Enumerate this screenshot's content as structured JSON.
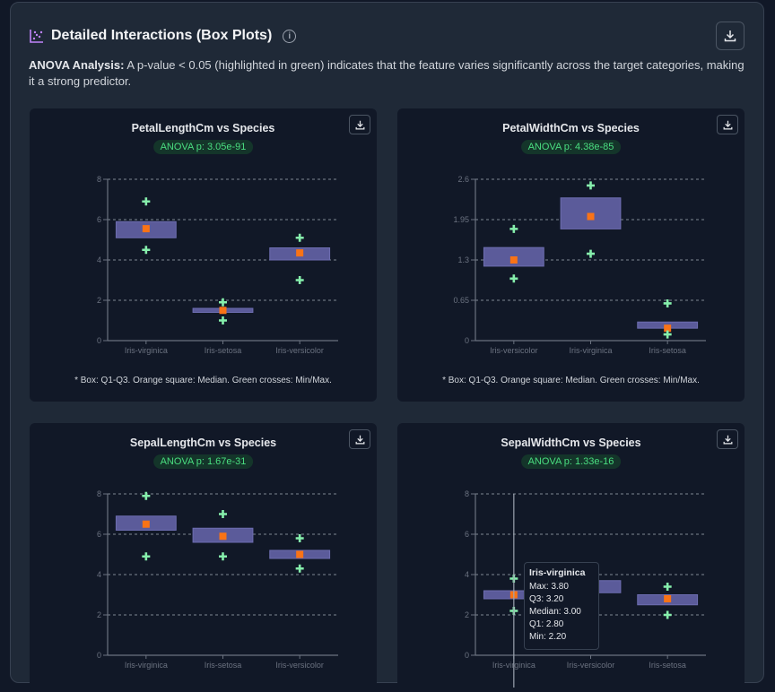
{
  "header": {
    "title": "Detailed Interactions (Box Plots)",
    "icon": "scatter-chart-icon",
    "description_label": "ANOVA Analysis:",
    "description_text": " A p-value < 0.05 (highlighted in green) indicates that the feature varies significantly across the target categories, making it a strong predictor."
  },
  "colors": {
    "box": "#5b5b9a",
    "median": "#f97316",
    "minmax": "#86efac",
    "badge_text": "#4ade80",
    "grid": "#9ca3af"
  },
  "note": "* Box: Q1-Q3. Orange square: Median. Green crosses: Min/Max.",
  "tooltip": {
    "name": "Iris-virginica",
    "max": "Max: 3.80",
    "q3": "Q3: 3.20",
    "median": "Median: 3.00",
    "q1": "Q1: 2.80",
    "min": "Min: 2.20"
  },
  "chart_data": [
    {
      "type": "box",
      "title": "PetalLengthCm vs Species",
      "anova": "ANOVA p: 3.05e-91",
      "yticks": [
        "0",
        "2",
        "4",
        "6",
        "8"
      ],
      "ylim": [
        0,
        8
      ],
      "categories": [
        "Iris-virginica",
        "Iris-setosa",
        "Iris-versicolor"
      ],
      "boxes": [
        {
          "min": 4.5,
          "q1": 5.1,
          "median": 5.55,
          "q3": 5.9,
          "max": 6.9
        },
        {
          "min": 1.0,
          "q1": 1.4,
          "median": 1.5,
          "q3": 1.6,
          "max": 1.9
        },
        {
          "min": 3.0,
          "q1": 4.0,
          "median": 4.35,
          "q3": 4.6,
          "max": 5.1
        }
      ]
    },
    {
      "type": "box",
      "title": "PetalWidthCm vs Species",
      "anova": "ANOVA p: 4.38e-85",
      "yticks": [
        "0",
        "0.65",
        "1.3",
        "1.95",
        "2.6"
      ],
      "ylim": [
        0,
        2.6
      ],
      "categories": [
        "Iris-versicolor",
        "Iris-virginica",
        "Iris-setosa"
      ],
      "boxes": [
        {
          "min": 1.0,
          "q1": 1.2,
          "median": 1.3,
          "q3": 1.5,
          "max": 1.8
        },
        {
          "min": 1.4,
          "q1": 1.8,
          "median": 2.0,
          "q3": 2.3,
          "max": 2.5
        },
        {
          "min": 0.1,
          "q1": 0.2,
          "median": 0.2,
          "q3": 0.3,
          "max": 0.6
        }
      ]
    },
    {
      "type": "box",
      "title": "SepalLengthCm vs Species",
      "anova": "ANOVA p: 1.67e-31",
      "yticks": [
        "0",
        "2",
        "4",
        "6",
        "8"
      ],
      "ylim": [
        0,
        8
      ],
      "categories": [
        "Iris-virginica",
        "Iris-setosa",
        "Iris-versicolor"
      ],
      "boxes": [
        {
          "min": 4.9,
          "q1": 6.2,
          "median": 6.5,
          "q3": 6.9,
          "max": 7.9
        },
        {
          "min": 4.9,
          "q1": 5.6,
          "median": 5.9,
          "q3": 6.3,
          "max": 7.0
        },
        {
          "min": 4.3,
          "q1": 4.8,
          "median": 5.0,
          "q3": 5.2,
          "max": 5.8
        }
      ]
    },
    {
      "type": "box",
      "title": "SepalWidthCm vs Species",
      "anova": "ANOVA p: 1.33e-16",
      "yticks": [
        "0",
        "2",
        "4",
        "6",
        "8"
      ],
      "ylim": [
        0,
        8
      ],
      "categories": [
        "Iris-virginica",
        "Iris-versicolor",
        "Iris-setosa"
      ],
      "boxes": [
        {
          "min": 2.2,
          "q1": 2.8,
          "median": 3.0,
          "q3": 3.2,
          "max": 3.8
        },
        {
          "min": 2.3,
          "q1": 3.1,
          "median": 3.4,
          "q3": 3.7,
          "max": 4.4
        },
        {
          "min": 2.0,
          "q1": 2.5,
          "median": 2.8,
          "q3": 3.0,
          "max": 3.4
        }
      ]
    }
  ]
}
